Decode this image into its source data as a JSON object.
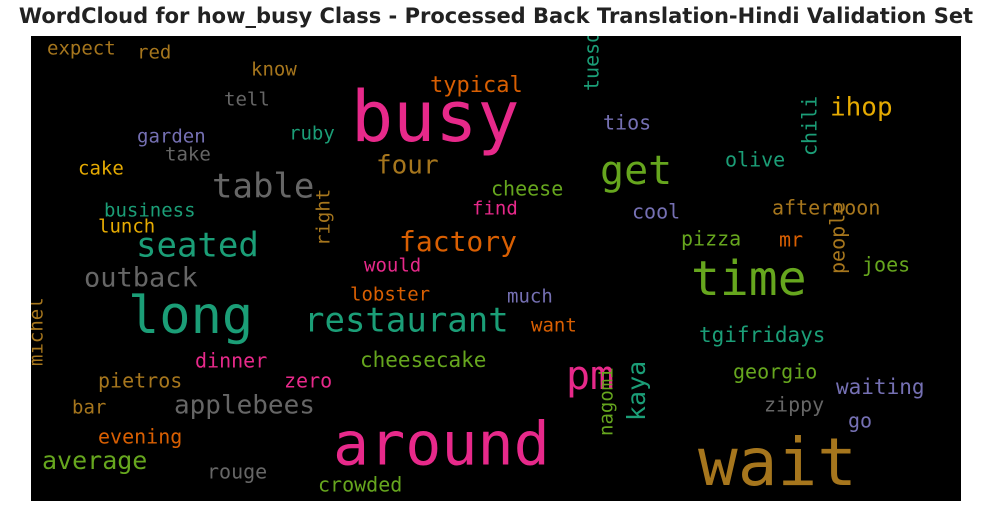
{
  "chart_data": {
    "type": "wordcloud",
    "title": "WordCloud for how_busy Class - Processed Back Translation-Hindi Validation Set",
    "background": "#000000",
    "colors": {
      "pink": "#e7298a",
      "teal": "#1b9e77",
      "olive": "#a6761d",
      "green": "#66a61e",
      "orange": "#d95f02",
      "gray": "#666666",
      "purple": "#7570b3",
      "yellow": "#e6ab02"
    },
    "words": [
      {
        "text": "busy",
        "color": "pink"
      },
      {
        "text": "wait",
        "color": "olive"
      },
      {
        "text": "around",
        "color": "pink"
      },
      {
        "text": "long",
        "color": "teal"
      },
      {
        "text": "time",
        "color": "green"
      },
      {
        "text": "restaurant",
        "color": "teal"
      },
      {
        "text": "table",
        "color": "gray"
      },
      {
        "text": "get",
        "color": "green"
      },
      {
        "text": "pm",
        "color": "pink"
      },
      {
        "text": "seated",
        "color": "teal"
      },
      {
        "text": "outback",
        "color": "gray"
      },
      {
        "text": "applebees",
        "color": "gray"
      },
      {
        "text": "factory",
        "color": "orange"
      },
      {
        "text": "four",
        "color": "olive"
      },
      {
        "text": "ihop",
        "color": "yellow"
      },
      {
        "text": "average",
        "color": "green"
      },
      {
        "text": "kaya",
        "color": "teal"
      },
      {
        "text": "typical",
        "color": "orange"
      },
      {
        "text": "cheesecake",
        "color": "green"
      },
      {
        "text": "tgifridays",
        "color": "teal"
      },
      {
        "text": "waiting",
        "color": "purple"
      },
      {
        "text": "georgio",
        "color": "green"
      },
      {
        "text": "afternoon",
        "color": "olive"
      },
      {
        "text": "olive",
        "color": "teal"
      },
      {
        "text": "pizza",
        "color": "green"
      },
      {
        "text": "joes",
        "color": "green"
      },
      {
        "text": "people",
        "color": "olive"
      },
      {
        "text": "zippy",
        "color": "gray"
      },
      {
        "text": "go",
        "color": "purple"
      },
      {
        "text": "cool",
        "color": "purple"
      },
      {
        "text": "mr",
        "color": "orange"
      },
      {
        "text": "chili",
        "color": "teal"
      },
      {
        "text": "tios",
        "color": "purple"
      },
      {
        "text": "tuesday",
        "color": "teal"
      },
      {
        "text": "nagomi",
        "color": "green"
      },
      {
        "text": "crowded",
        "color": "green"
      },
      {
        "text": "rouge",
        "color": "gray"
      },
      {
        "text": "evening",
        "color": "orange"
      },
      {
        "text": "bar",
        "color": "olive"
      },
      {
        "text": "pietros",
        "color": "olive"
      },
      {
        "text": "zero",
        "color": "pink"
      },
      {
        "text": "dinner",
        "color": "pink"
      },
      {
        "text": "michel",
        "color": "olive"
      },
      {
        "text": "lobster",
        "color": "orange"
      },
      {
        "text": "would",
        "color": "pink"
      },
      {
        "text": "much",
        "color": "purple"
      },
      {
        "text": "want",
        "color": "orange"
      },
      {
        "text": "right",
        "color": "olive"
      },
      {
        "text": "find",
        "color": "pink"
      },
      {
        "text": "cheese",
        "color": "green"
      },
      {
        "text": "business",
        "color": "teal"
      },
      {
        "text": "lunch",
        "color": "yellow"
      },
      {
        "text": "cake",
        "color": "yellow"
      },
      {
        "text": "garden",
        "color": "purple"
      },
      {
        "text": "take",
        "color": "gray"
      },
      {
        "text": "ruby",
        "color": "teal"
      },
      {
        "text": "tell",
        "color": "gray"
      },
      {
        "text": "know",
        "color": "olive"
      },
      {
        "text": "expect",
        "color": "olive"
      },
      {
        "text": "red",
        "color": "olive"
      }
    ]
  }
}
